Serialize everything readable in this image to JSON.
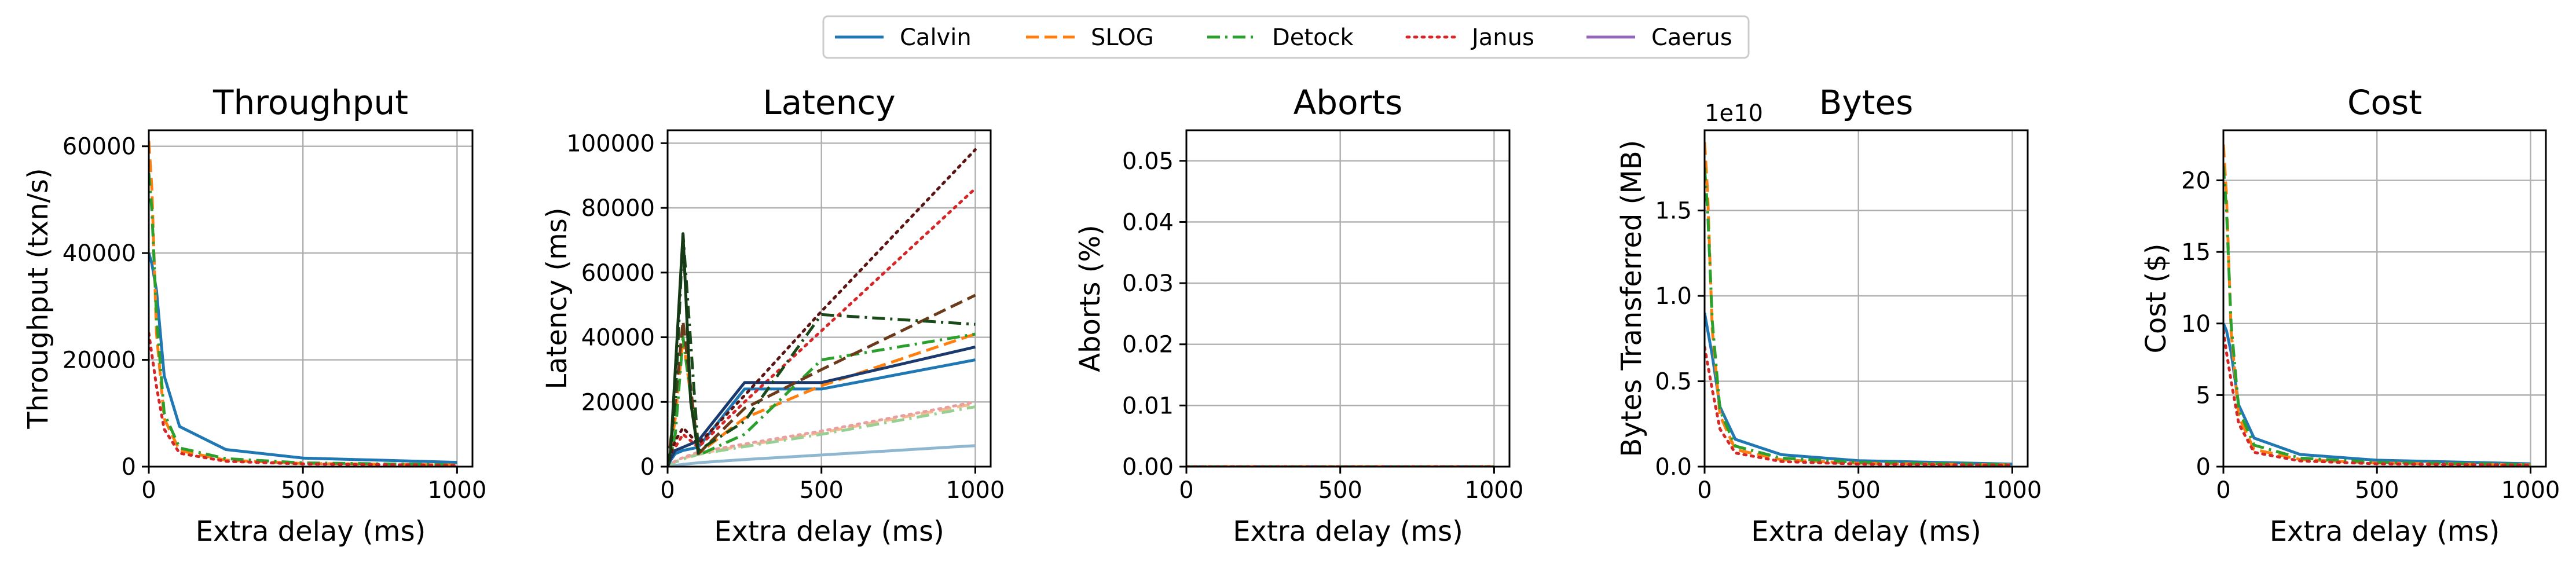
{
  "legend": {
    "placement": "top-center",
    "items": [
      {
        "name": "Calvin",
        "color": "#1f77b4",
        "dash": "solid"
      },
      {
        "name": "SLOG",
        "color": "#ff7f0e",
        "dash": "dashed"
      },
      {
        "name": "Detock",
        "color": "#2ca02c",
        "dash": "dashdot"
      },
      {
        "name": "Janus",
        "color": "#d62728",
        "dash": "dotted"
      },
      {
        "name": "Caerus",
        "color": "#9467bd",
        "dash": "solid"
      }
    ]
  },
  "chart_data": [
    {
      "type": "line",
      "title": "Throughput",
      "xlabel": "Extra delay (ms)",
      "ylabel": "Throughput (txn/s)",
      "xlim": [
        0,
        1050
      ],
      "ylim": [
        0,
        63000
      ],
      "xticks": [
        0,
        500,
        1000
      ],
      "yticks": [
        0,
        20000,
        40000,
        60000
      ],
      "grid": true,
      "series": [
        {
          "name": "Calvin",
          "color": "#1f77b4",
          "dash": "solid",
          "x": [
            0,
            10,
            25,
            50,
            100,
            250,
            500,
            1000
          ],
          "y": [
            40000,
            38000,
            33000,
            17000,
            7500,
            3200,
            1600,
            800
          ]
        },
        {
          "name": "SLOG",
          "color": "#ff7f0e",
          "dash": "dashed",
          "x": [
            0,
            10,
            25,
            50,
            100,
            250,
            500,
            1000
          ],
          "y": [
            61000,
            52000,
            25000,
            9000,
            3000,
            1200,
            600,
            300
          ]
        },
        {
          "name": "Detock",
          "color": "#2ca02c",
          "dash": "dashdot",
          "x": [
            0,
            10,
            25,
            50,
            100,
            250,
            500,
            1000
          ],
          "y": [
            55000,
            48000,
            28000,
            10000,
            3500,
            1500,
            700,
            350
          ]
        },
        {
          "name": "Janus",
          "color": "#d62728",
          "dash": "dotted",
          "x": [
            0,
            10,
            25,
            50,
            100,
            250,
            500,
            1000
          ],
          "y": [
            25000,
            21000,
            15000,
            7000,
            2500,
            1000,
            500,
            250
          ]
        }
      ]
    },
    {
      "type": "line",
      "title": "Latency",
      "xlabel": "Extra delay (ms)",
      "ylabel": "Latency (ms)",
      "xlim": [
        0,
        1050
      ],
      "ylim": [
        0,
        104000
      ],
      "xticks": [
        0,
        500,
        1000
      ],
      "yticks": [
        0,
        20000,
        40000,
        60000,
        80000,
        100000
      ],
      "grid": true,
      "series": [
        {
          "color": "#8fb8d0",
          "dash": "solid",
          "x": [
            0,
            10,
            25,
            50,
            100,
            250,
            500,
            1000
          ],
          "y": [
            0,
            200,
            400,
            700,
            1200,
            2200,
            3600,
            6500
          ]
        },
        {
          "color": "#f6b98e",
          "dash": "dashed",
          "x": [
            0,
            10,
            25,
            50,
            100,
            250,
            500,
            1000
          ],
          "y": [
            0,
            800,
            1500,
            2500,
            4000,
            6500,
            10500,
            19500
          ]
        },
        {
          "color": "#98d094",
          "dash": "dashdot",
          "x": [
            0,
            10,
            25,
            50,
            100,
            250,
            500,
            1000
          ],
          "y": [
            0,
            700,
            1400,
            2300,
            3800,
            6200,
            10000,
            18500
          ]
        },
        {
          "color": "#e8a0a0",
          "dash": "dotted",
          "x": [
            0,
            10,
            25,
            50,
            100,
            250,
            500,
            1000
          ],
          "y": [
            0,
            900,
            1700,
            2800,
            4500,
            7000,
            11000,
            20000
          ]
        },
        {
          "color": "#1f77b4",
          "dash": "solid",
          "x": [
            0,
            10,
            25,
            50,
            100,
            250,
            500,
            1000
          ],
          "y": [
            0,
            2000,
            4000,
            5000,
            6000,
            24000,
            24000,
            33000
          ]
        },
        {
          "color": "#ff7f0e",
          "dash": "dashed",
          "x": [
            0,
            10,
            25,
            50,
            100,
            250,
            500,
            1000
          ],
          "y": [
            0,
            5000,
            15000,
            40000,
            4000,
            15000,
            25000,
            41000
          ]
        },
        {
          "color": "#2ca02c",
          "dash": "dashdot",
          "x": [
            0,
            10,
            25,
            50,
            100,
            250,
            500,
            1000
          ],
          "y": [
            0,
            3000,
            10000,
            40000,
            3500,
            10000,
            33000,
            41000
          ]
        },
        {
          "color": "#d62728",
          "dash": "dotted",
          "x": [
            0,
            10,
            25,
            50,
            100,
            250,
            500,
            1000
          ],
          "y": [
            0,
            3000,
            6000,
            10000,
            6000,
            20000,
            42000,
            86000
          ]
        },
        {
          "color": "#1a3a6e",
          "dash": "solid",
          "x": [
            0,
            10,
            25,
            50,
            100,
            250,
            500,
            1000
          ],
          "y": [
            0,
            2500,
            5000,
            6000,
            8000,
            26000,
            26000,
            37000
          ]
        },
        {
          "color": "#6b3a1a",
          "dash": "dashed",
          "x": [
            0,
            10,
            25,
            50,
            100,
            250,
            500,
            1000
          ],
          "y": [
            0,
            8000,
            20000,
            45000,
            4000,
            18000,
            30000,
            53000
          ]
        },
        {
          "color": "#1a4a1a",
          "dash": "dashdot",
          "x": [
            0,
            10,
            25,
            50,
            100,
            250,
            500,
            1000
          ],
          "y": [
            0,
            6000,
            20000,
            72000,
            5000,
            14000,
            47000,
            44000
          ]
        },
        {
          "color": "#5a1414",
          "dash": "dotted",
          "x": [
            0,
            10,
            25,
            50,
            100,
            250,
            500,
            1000
          ],
          "y": [
            0,
            4000,
            8000,
            12000,
            7000,
            22000,
            48000,
            98000
          ]
        },
        {
          "color": "#163a16",
          "dash": "solid",
          "x": [
            0,
            10,
            25,
            50,
            75,
            100
          ],
          "y": [
            0,
            5000,
            30000,
            72000,
            20000,
            4000
          ]
        }
      ]
    },
    {
      "type": "line",
      "title": "Aborts",
      "xlabel": "Extra delay (ms)",
      "ylabel": "Aborts (%)",
      "xlim": [
        0,
        1050
      ],
      "ylim": [
        0,
        0.055
      ],
      "xticks": [
        0,
        500,
        1000
      ],
      "yticks": [
        0.0,
        0.01,
        0.02,
        0.03,
        0.04,
        0.05
      ],
      "ytick_labels": [
        "0.00",
        "0.01",
        "0.02",
        "0.03",
        "0.04",
        "0.05"
      ],
      "grid": true,
      "series": [
        {
          "name": "Calvin",
          "color": "#1f77b4",
          "dash": "solid",
          "x": [
            0,
            1000
          ],
          "y": [
            0,
            0
          ]
        },
        {
          "name": "SLOG",
          "color": "#ff7f0e",
          "dash": "dashed",
          "x": [
            0,
            1000
          ],
          "y": [
            0,
            0
          ]
        },
        {
          "name": "Detock",
          "color": "#2ca02c",
          "dash": "dashdot",
          "x": [
            0,
            1000
          ],
          "y": [
            0,
            0
          ]
        },
        {
          "name": "Janus",
          "color": "#d62728",
          "dash": "dotted",
          "x": [
            0,
            1000
          ],
          "y": [
            0,
            0
          ]
        }
      ]
    },
    {
      "type": "line",
      "title": "Bytes",
      "xlabel": "Extra delay (ms)",
      "ylabel": "Bytes Transferred (MB)",
      "offset_text": "1e10",
      "xlim": [
        0,
        1050
      ],
      "ylim": [
        0,
        1.97
      ],
      "xticks": [
        0,
        500,
        1000
      ],
      "yticks": [
        0.0,
        0.5,
        1.0,
        1.5
      ],
      "ytick_labels": [
        "0.0",
        "0.5",
        "1.0",
        "1.5"
      ],
      "grid": true,
      "series": [
        {
          "name": "Calvin",
          "color": "#1f77b4",
          "dash": "solid",
          "x": [
            0,
            10,
            25,
            50,
            100,
            250,
            500,
            1000
          ],
          "y": [
            0.9,
            0.8,
            0.65,
            0.35,
            0.16,
            0.07,
            0.035,
            0.015
          ]
        },
        {
          "name": "SLOG",
          "color": "#ff7f0e",
          "dash": "dashed",
          "x": [
            0,
            10,
            25,
            50,
            100,
            250,
            500,
            1000
          ],
          "y": [
            1.9,
            1.6,
            0.8,
            0.3,
            0.1,
            0.04,
            0.02,
            0.01
          ]
        },
        {
          "name": "Detock",
          "color": "#2ca02c",
          "dash": "dashdot",
          "x": [
            0,
            10,
            25,
            50,
            100,
            250,
            500,
            1000
          ],
          "y": [
            1.75,
            1.5,
            0.85,
            0.33,
            0.12,
            0.05,
            0.025,
            0.012
          ]
        },
        {
          "name": "Janus",
          "color": "#d62728",
          "dash": "dotted",
          "x": [
            0,
            10,
            25,
            50,
            100,
            250,
            500,
            1000
          ],
          "y": [
            0.7,
            0.6,
            0.45,
            0.22,
            0.08,
            0.03,
            0.015,
            0.008
          ]
        }
      ]
    },
    {
      "type": "line",
      "title": "Cost",
      "xlabel": "Extra delay (ms)",
      "ylabel": "Cost ($)",
      "xlim": [
        0,
        1050
      ],
      "ylim": [
        0,
        23.5
      ],
      "xticks": [
        0,
        500,
        1000
      ],
      "yticks": [
        0,
        5,
        10,
        15,
        20
      ],
      "grid": true,
      "series": [
        {
          "name": "Calvin",
          "color": "#1f77b4",
          "dash": "solid",
          "x": [
            0,
            10,
            25,
            50,
            100,
            250,
            500,
            1000
          ],
          "y": [
            10,
            9.5,
            8,
            4.3,
            2,
            0.85,
            0.45,
            0.2
          ]
        },
        {
          "name": "SLOG",
          "color": "#ff7f0e",
          "dash": "dashed",
          "x": [
            0,
            10,
            25,
            50,
            100,
            250,
            500,
            1000
          ],
          "y": [
            22.5,
            19,
            9.5,
            3.5,
            1.2,
            0.5,
            0.25,
            0.12
          ]
        },
        {
          "name": "Detock",
          "color": "#2ca02c",
          "dash": "dashdot",
          "x": [
            0,
            10,
            25,
            50,
            100,
            250,
            500,
            1000
          ],
          "y": [
            21,
            18,
            10,
            4,
            1.5,
            0.6,
            0.3,
            0.15
          ]
        },
        {
          "name": "Janus",
          "color": "#d62728",
          "dash": "dotted",
          "x": [
            0,
            10,
            25,
            50,
            100,
            250,
            500,
            1000
          ],
          "y": [
            9.5,
            8,
            6,
            3,
            1,
            0.4,
            0.2,
            0.1
          ]
        }
      ]
    }
  ]
}
